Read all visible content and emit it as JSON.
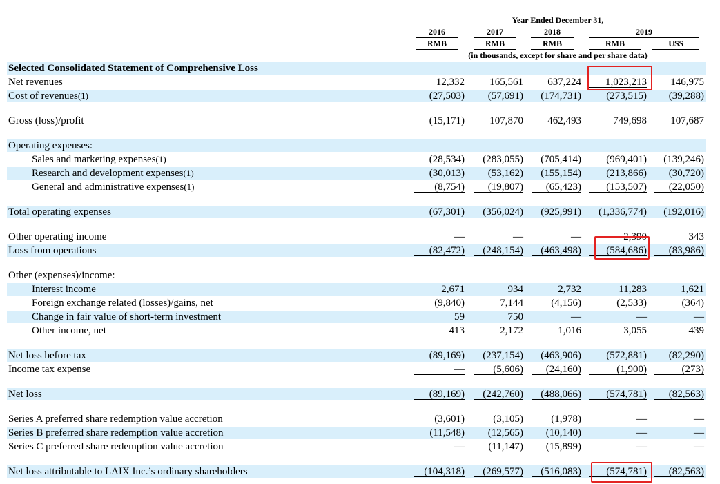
{
  "header": {
    "period_title": "Year Ended December 31,",
    "years": [
      "2016",
      "2017",
      "2018",
      "2019"
    ],
    "currencies": [
      "RMB",
      "RMB",
      "RMB",
      "RMB",
      "US$"
    ],
    "note": "(in thousands, except for share and per share data)"
  },
  "section_title": "Selected Consolidated Statement of Comprehensive Loss",
  "rows": [
    {
      "label": "Net revenues",
      "sup": "",
      "values": [
        "12,332",
        "165,561",
        "637,224",
        "1,023,213",
        "146,975"
      ]
    },
    {
      "label": "Cost of revenues",
      "sup": "(1)",
      "values": [
        "(27,503)",
        "(57,691)",
        "(174,731)",
        "(273,515)",
        "(39,288)"
      ]
    },
    {
      "label": "Gross (loss)/profit",
      "sup": "",
      "values": [
        "(15,171)",
        "107,870",
        "462,493",
        "749,698",
        "107,687"
      ]
    },
    {
      "label": "Operating expenses:",
      "sup": "",
      "values": []
    },
    {
      "label": "Sales and marketing expenses",
      "sup": "(1)",
      "values": [
        "(28,534)",
        "(283,055)",
        "(705,414)",
        "(969,401)",
        "(139,246)"
      ]
    },
    {
      "label": "Research and development expenses",
      "sup": "(1)",
      "values": [
        "(30,013)",
        "(53,162)",
        "(155,154)",
        "(213,866)",
        "(30,720)"
      ]
    },
    {
      "label": "General and administrative expenses",
      "sup": "(1)",
      "values": [
        "(8,754)",
        "(19,807)",
        "(65,423)",
        "(153,507)",
        "(22,050)"
      ]
    },
    {
      "label": "Total operating expenses",
      "sup": "",
      "values": [
        "(67,301)",
        "(356,024)",
        "(925,991)",
        "(1,336,774)",
        "(192,016)"
      ]
    },
    {
      "label": "Other operating income",
      "sup": "",
      "values": [
        "—",
        "—",
        "—",
        "2,390",
        "343"
      ]
    },
    {
      "label": "Loss from operations",
      "sup": "",
      "values": [
        "(82,472)",
        "(248,154)",
        "(463,498)",
        "(584,686)",
        "(83,986)"
      ]
    },
    {
      "label": "Other (expenses)/income:",
      "sup": "",
      "values": []
    },
    {
      "label": "Interest income",
      "sup": "",
      "values": [
        "2,671",
        "934",
        "2,732",
        "11,283",
        "1,621"
      ]
    },
    {
      "label": "Foreign exchange related (losses)/gains, net",
      "sup": "",
      "values": [
        "(9,840)",
        "7,144",
        "(4,156)",
        "(2,533)",
        "(364)"
      ]
    },
    {
      "label": "Change in fair value of short-term investment",
      "sup": "",
      "values": [
        "59",
        "750",
        "—",
        "—",
        "—"
      ]
    },
    {
      "label": "Other income, net",
      "sup": "",
      "values": [
        "413",
        "2,172",
        "1,016",
        "3,055",
        "439"
      ]
    },
    {
      "label": "Net loss before tax",
      "sup": "",
      "values": [
        "(89,169)",
        "(237,154)",
        "(463,906)",
        "(572,881)",
        "(82,290)"
      ]
    },
    {
      "label": "Income tax expense",
      "sup": "",
      "values": [
        "—",
        "(5,606)",
        "(24,160)",
        "(1,900)",
        "(273)"
      ]
    },
    {
      "label": "Net loss",
      "sup": "",
      "values": [
        "(89,169)",
        "(242,760)",
        "(488,066)",
        "(574,781)",
        "(82,563)"
      ]
    },
    {
      "label": "Series A preferred share redemption value accretion",
      "sup": "",
      "values": [
        "(3,601)",
        "(3,105)",
        "(1,978)",
        "—",
        "—"
      ]
    },
    {
      "label": "Series B preferred share redemption value accretion",
      "sup": "",
      "values": [
        "(11,548)",
        "(12,565)",
        "(10,140)",
        "—",
        "—"
      ]
    },
    {
      "label": "Series C preferred share redemption value accretion",
      "sup": "",
      "values": [
        "—",
        "(11,147)",
        "(15,899)",
        "—",
        "—"
      ]
    },
    {
      "label": "Net loss attributable to LAIX Inc.’s ordinary shareholders",
      "sup": "",
      "values": [
        "(104,318)",
        "(269,577)",
        "(516,083)",
        "(574,781)",
        "(82,563)"
      ]
    }
  ],
  "colors": {
    "row_shade": "#d9effb",
    "highlight_box": "#e32322"
  }
}
